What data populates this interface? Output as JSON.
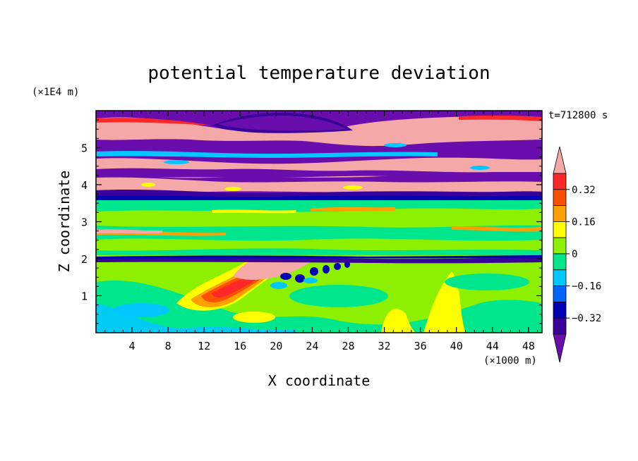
{
  "chart_data": {
    "type": "heatmap",
    "title": "potential temperature deviation",
    "xlabel": "X coordinate",
    "ylabel": "Z coordinate",
    "x_unit": "(×1000 m)",
    "y_unit": "(×1E4 m)",
    "time_label": "t=712800 s",
    "xlim": [
      0,
      49.5
    ],
    "ylim": [
      0,
      6
    ],
    "x_ticks": [
      4,
      8,
      12,
      16,
      20,
      24,
      28,
      32,
      36,
      40,
      44,
      48
    ],
    "y_ticks": [
      1,
      2,
      3,
      4,
      5
    ],
    "colorbar": {
      "levels": [
        -0.4,
        -0.32,
        -0.24,
        -0.16,
        -0.08,
        0,
        0.08,
        0.16,
        0.24,
        0.32,
        0.4
      ],
      "labels": [
        "0.32",
        "0.16",
        "0",
        "−0.16",
        "−0.32"
      ],
      "label_values": [
        0.32,
        0.16,
        0,
        -0.16,
        -0.32
      ],
      "colors": {
        "below": "#6a0dad",
        "b1": "#3a009a",
        "b2": "#0000b4",
        "b3": "#0064ff",
        "b4": "#00c8ff",
        "b5": "#00e68c",
        "b6": "#8cf000",
        "b7": "#ffff00",
        "b8": "#ffa000",
        "b9": "#ff5000",
        "b10": "#ff2828",
        "above": "#f5a8a8"
      }
    },
    "field_bands": [
      {
        "z": [
          0.0,
          0.6
        ],
        "level": "b5",
        "note": "lower field, mostly cyan-green"
      },
      {
        "z": [
          0.6,
          1.9
        ],
        "level": "b6",
        "note": "green/yellow with warm plume near x=12-20"
      },
      {
        "z": [
          1.9,
          2.1
        ],
        "level": "below",
        "note": "thin dark band"
      },
      {
        "z": [
          2.1,
          3.6
        ],
        "level": "b6",
        "note": "green/cyan layered"
      },
      {
        "z": [
          3.6,
          4.2
        ],
        "level": "above",
        "note": "pink/purple layers"
      },
      {
        "z": [
          4.2,
          5.0
        ],
        "level": "below",
        "note": "purple/pink alternating"
      },
      {
        "z": [
          5.0,
          6.0
        ],
        "level": "above",
        "note": "pink/purple with red top edge"
      }
    ]
  }
}
